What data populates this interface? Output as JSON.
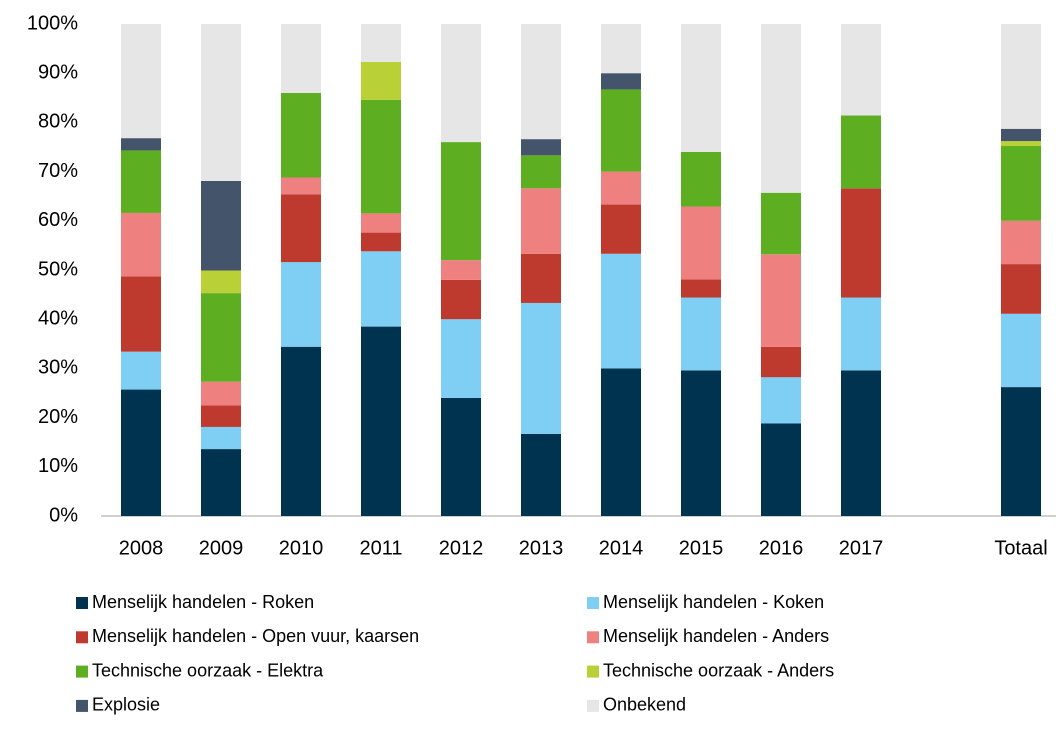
{
  "chart_data": {
    "type": "stacked_bar",
    "categories": [
      "2008",
      "2009",
      "2010",
      "2011",
      "2012",
      "2013",
      "2014",
      "2015",
      "2016",
      "2017",
      null,
      "Totaal"
    ],
    "series": [
      {
        "name": "Menselijk handelen - Roken",
        "color": "#003350",
        "values": [
          25.7,
          13.6,
          34.4,
          38.5,
          24,
          16.7,
          30,
          29.6,
          18.8,
          29.6,
          null,
          26.2
        ]
      },
      {
        "name": "Menselijk handelen - Koken",
        "color": "#7fcef4",
        "values": [
          7.7,
          4.5,
          17.2,
          15.3,
          16,
          26.6,
          23.3,
          14.8,
          9.4,
          14.8,
          null,
          14.9
        ]
      },
      {
        "name": "Menselijk handelen - Open vuur, kaarsen",
        "color": "#be3a2f",
        "values": [
          15.3,
          4.4,
          13.8,
          3.8,
          8,
          10,
          10,
          3.7,
          6.2,
          22.2,
          null,
          10.1
        ]
      },
      {
        "name": "Menselijk handelen - Anders",
        "color": "#ef8080",
        "values": [
          12.9,
          4.8,
          3.4,
          3.9,
          4,
          13.3,
          6.7,
          14.8,
          18.8,
          0,
          null,
          8.8
        ]
      },
      {
        "name": "Technische oorzaak - Elektra",
        "color": "#5eae22",
        "values": [
          12.7,
          18,
          17.2,
          23.1,
          24,
          6.7,
          16.7,
          11.1,
          12.5,
          14.8,
          null,
          15.2
        ]
      },
      {
        "name": "Technische oorzaak - Anders",
        "color": "#b9d136",
        "values": [
          0,
          4.6,
          0,
          7.7,
          0,
          0,
          0,
          0,
          0,
          0,
          null,
          1
        ]
      },
      {
        "name": "Explosie",
        "color": "#44546a",
        "values": [
          2.5,
          18.2,
          0,
          0,
          0,
          3.3,
          3.3,
          0,
          0,
          0,
          null,
          2.5
        ]
      },
      {
        "name": "Onbekend",
        "color": "#e6e6e6",
        "values": [
          23.2,
          31.9,
          14,
          7.7,
          24,
          23.4,
          10,
          26,
          34.3,
          18.6,
          null,
          21.3
        ]
      }
    ],
    "ylim": [
      0,
      100
    ],
    "yticks": [
      {
        "value": 0,
        "label": "0%"
      },
      {
        "value": 10,
        "label": "10%"
      },
      {
        "value": 20,
        "label": "20%"
      },
      {
        "value": 30,
        "label": "30%"
      },
      {
        "value": 40,
        "label": "40%"
      },
      {
        "value": 50,
        "label": "50%"
      },
      {
        "value": 60,
        "label": "60%"
      },
      {
        "value": 70,
        "label": "70%"
      },
      {
        "value": 80,
        "label": "80%"
      },
      {
        "value": 90,
        "label": "90%"
      },
      {
        "value": 100,
        "label": "100%"
      }
    ],
    "grid": false,
    "legend": "bottom"
  }
}
